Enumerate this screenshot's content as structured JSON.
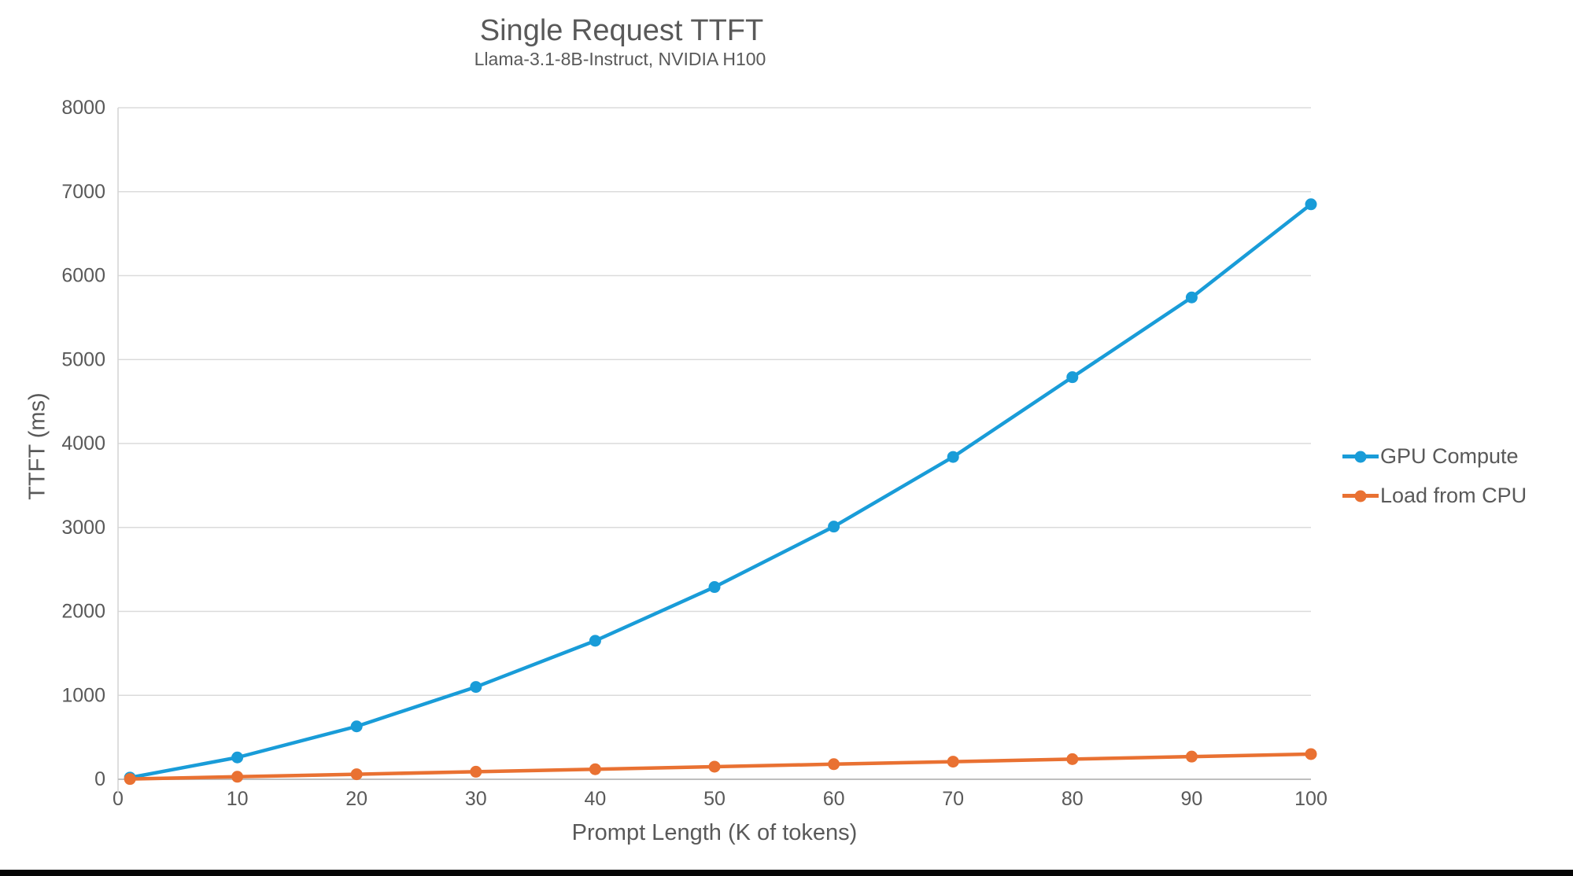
{
  "chart_data": {
    "type": "line",
    "title": "Single Request TTFT",
    "subtitle": "Llama-3.1-8B-Instruct, NVIDIA H100",
    "xlabel": "Prompt Length (K of tokens)",
    "ylabel": "TTFT (ms)",
    "x": [
      1,
      10,
      20,
      30,
      40,
      50,
      60,
      70,
      80,
      90,
      100
    ],
    "series": [
      {
        "name": "GPU Compute",
        "color": "#199CD8",
        "values": [
          20,
          260,
          630,
          1100,
          1650,
          2290,
          3010,
          3840,
          4790,
          5740,
          6850
        ]
      },
      {
        "name": "Load from CPU",
        "color": "#E97132",
        "values": [
          3,
          30,
          60,
          90,
          120,
          150,
          180,
          210,
          240,
          270,
          300
        ]
      }
    ],
    "x_ticks": [
      0,
      10,
      20,
      30,
      40,
      50,
      60,
      70,
      80,
      90,
      100
    ],
    "y_ticks": [
      0,
      1000,
      2000,
      3000,
      4000,
      5000,
      6000,
      7000,
      8000
    ],
    "xlim": [
      0,
      100
    ],
    "ylim": [
      0,
      8000
    ],
    "grid": "horizontal-only",
    "legend_position": "right",
    "marker": "circle",
    "colors": {
      "gridline": "#DBDBDB",
      "x_axis_line": "#BFBFBF",
      "y_axis_line": "#D6D6D6",
      "tick_text": "#595959"
    }
  }
}
